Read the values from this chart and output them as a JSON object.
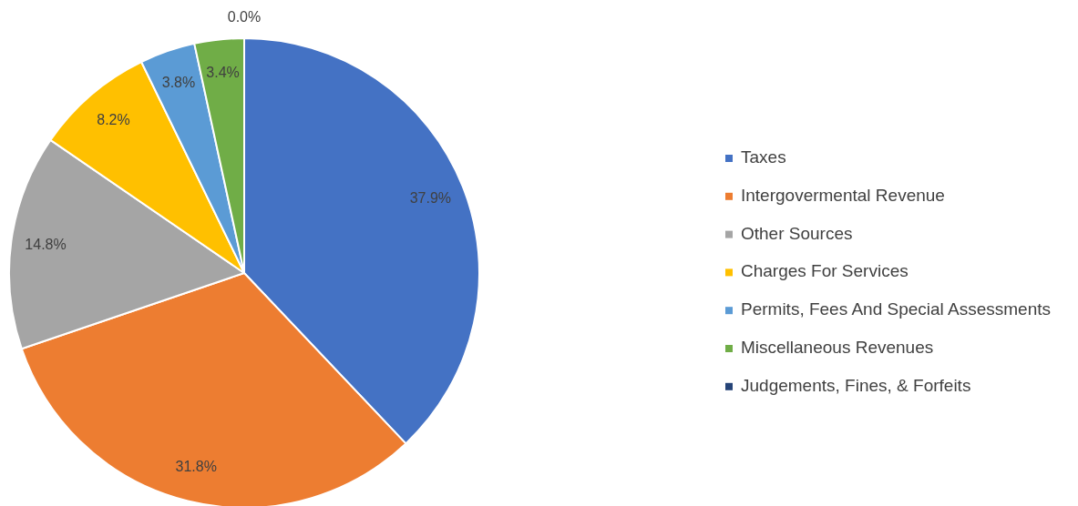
{
  "chart_data": {
    "type": "pie",
    "categories": [
      "Taxes",
      "Intergovermental Revenue",
      "Other Sources",
      "Charges For Services",
      "Permits, Fees And Special Assessments",
      "Miscellaneous Revenues",
      "Judgements, Fines, & Forfeits"
    ],
    "values": [
      37.9,
      31.8,
      14.8,
      8.2,
      3.8,
      3.4,
      0.0
    ],
    "colors": [
      "#4472c4",
      "#ed7d31",
      "#a5a5a5",
      "#ffc000",
      "#5b9bd5",
      "#70ad47",
      "#264478"
    ],
    "value_labels": [
      "37.9%",
      "31.8%",
      "14.8%",
      "8.2%",
      "3.8%",
      "3.4%",
      "0.0%"
    ],
    "legend": "right"
  }
}
